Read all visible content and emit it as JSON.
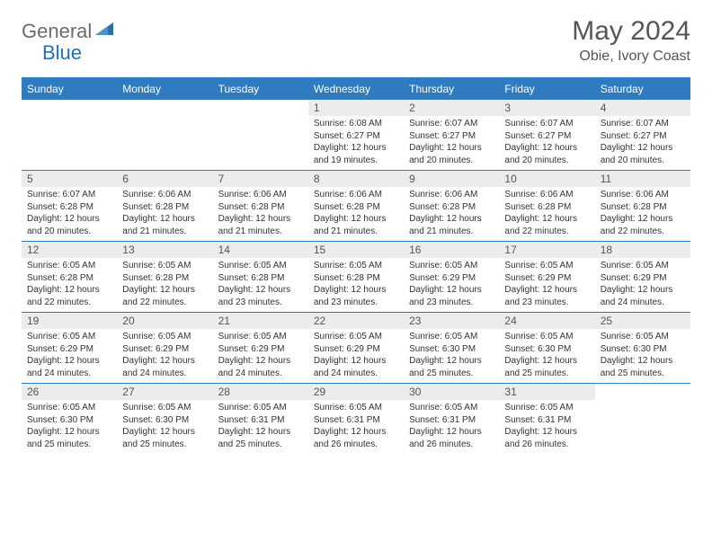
{
  "brand": {
    "word1": "General",
    "word2": "Blue"
  },
  "title": "May 2024",
  "location": "Obie, Ivory Coast",
  "colors": {
    "header_bg": "#2f7bbf",
    "header_text": "#ffffff",
    "brand_gray": "#6b6b6b",
    "brand_blue": "#2171b5",
    "daynum_bg": "#ececec",
    "cell_border": "#2f7bbf",
    "body_text": "#333333",
    "title_text": "#555555"
  },
  "weekdays": [
    "Sunday",
    "Monday",
    "Tuesday",
    "Wednesday",
    "Thursday",
    "Friday",
    "Saturday"
  ],
  "weeks": [
    [
      {
        "n": "",
        "sr": "",
        "ss": "",
        "dl": ""
      },
      {
        "n": "",
        "sr": "",
        "ss": "",
        "dl": ""
      },
      {
        "n": "",
        "sr": "",
        "ss": "",
        "dl": ""
      },
      {
        "n": "1",
        "sr": "6:08 AM",
        "ss": "6:27 PM",
        "dl": "12 hours and 19 minutes."
      },
      {
        "n": "2",
        "sr": "6:07 AM",
        "ss": "6:27 PM",
        "dl": "12 hours and 20 minutes."
      },
      {
        "n": "3",
        "sr": "6:07 AM",
        "ss": "6:27 PM",
        "dl": "12 hours and 20 minutes."
      },
      {
        "n": "4",
        "sr": "6:07 AM",
        "ss": "6:27 PM",
        "dl": "12 hours and 20 minutes."
      }
    ],
    [
      {
        "n": "5",
        "sr": "6:07 AM",
        "ss": "6:28 PM",
        "dl": "12 hours and 20 minutes."
      },
      {
        "n": "6",
        "sr": "6:06 AM",
        "ss": "6:28 PM",
        "dl": "12 hours and 21 minutes."
      },
      {
        "n": "7",
        "sr": "6:06 AM",
        "ss": "6:28 PM",
        "dl": "12 hours and 21 minutes."
      },
      {
        "n": "8",
        "sr": "6:06 AM",
        "ss": "6:28 PM",
        "dl": "12 hours and 21 minutes."
      },
      {
        "n": "9",
        "sr": "6:06 AM",
        "ss": "6:28 PM",
        "dl": "12 hours and 21 minutes."
      },
      {
        "n": "10",
        "sr": "6:06 AM",
        "ss": "6:28 PM",
        "dl": "12 hours and 22 minutes."
      },
      {
        "n": "11",
        "sr": "6:06 AM",
        "ss": "6:28 PM",
        "dl": "12 hours and 22 minutes."
      }
    ],
    [
      {
        "n": "12",
        "sr": "6:05 AM",
        "ss": "6:28 PM",
        "dl": "12 hours and 22 minutes."
      },
      {
        "n": "13",
        "sr": "6:05 AM",
        "ss": "6:28 PM",
        "dl": "12 hours and 22 minutes."
      },
      {
        "n": "14",
        "sr": "6:05 AM",
        "ss": "6:28 PM",
        "dl": "12 hours and 23 minutes."
      },
      {
        "n": "15",
        "sr": "6:05 AM",
        "ss": "6:28 PM",
        "dl": "12 hours and 23 minutes."
      },
      {
        "n": "16",
        "sr": "6:05 AM",
        "ss": "6:29 PM",
        "dl": "12 hours and 23 minutes."
      },
      {
        "n": "17",
        "sr": "6:05 AM",
        "ss": "6:29 PM",
        "dl": "12 hours and 23 minutes."
      },
      {
        "n": "18",
        "sr": "6:05 AM",
        "ss": "6:29 PM",
        "dl": "12 hours and 24 minutes."
      }
    ],
    [
      {
        "n": "19",
        "sr": "6:05 AM",
        "ss": "6:29 PM",
        "dl": "12 hours and 24 minutes."
      },
      {
        "n": "20",
        "sr": "6:05 AM",
        "ss": "6:29 PM",
        "dl": "12 hours and 24 minutes."
      },
      {
        "n": "21",
        "sr": "6:05 AM",
        "ss": "6:29 PM",
        "dl": "12 hours and 24 minutes."
      },
      {
        "n": "22",
        "sr": "6:05 AM",
        "ss": "6:29 PM",
        "dl": "12 hours and 24 minutes."
      },
      {
        "n": "23",
        "sr": "6:05 AM",
        "ss": "6:30 PM",
        "dl": "12 hours and 25 minutes."
      },
      {
        "n": "24",
        "sr": "6:05 AM",
        "ss": "6:30 PM",
        "dl": "12 hours and 25 minutes."
      },
      {
        "n": "25",
        "sr": "6:05 AM",
        "ss": "6:30 PM",
        "dl": "12 hours and 25 minutes."
      }
    ],
    [
      {
        "n": "26",
        "sr": "6:05 AM",
        "ss": "6:30 PM",
        "dl": "12 hours and 25 minutes."
      },
      {
        "n": "27",
        "sr": "6:05 AM",
        "ss": "6:30 PM",
        "dl": "12 hours and 25 minutes."
      },
      {
        "n": "28",
        "sr": "6:05 AM",
        "ss": "6:31 PM",
        "dl": "12 hours and 25 minutes."
      },
      {
        "n": "29",
        "sr": "6:05 AM",
        "ss": "6:31 PM",
        "dl": "12 hours and 26 minutes."
      },
      {
        "n": "30",
        "sr": "6:05 AM",
        "ss": "6:31 PM",
        "dl": "12 hours and 26 minutes."
      },
      {
        "n": "31",
        "sr": "6:05 AM",
        "ss": "6:31 PM",
        "dl": "12 hours and 26 minutes."
      },
      {
        "n": "",
        "sr": "",
        "ss": "",
        "dl": ""
      }
    ]
  ],
  "labels": {
    "sunrise": "Sunrise:",
    "sunset": "Sunset:",
    "daylight": "Daylight:"
  }
}
